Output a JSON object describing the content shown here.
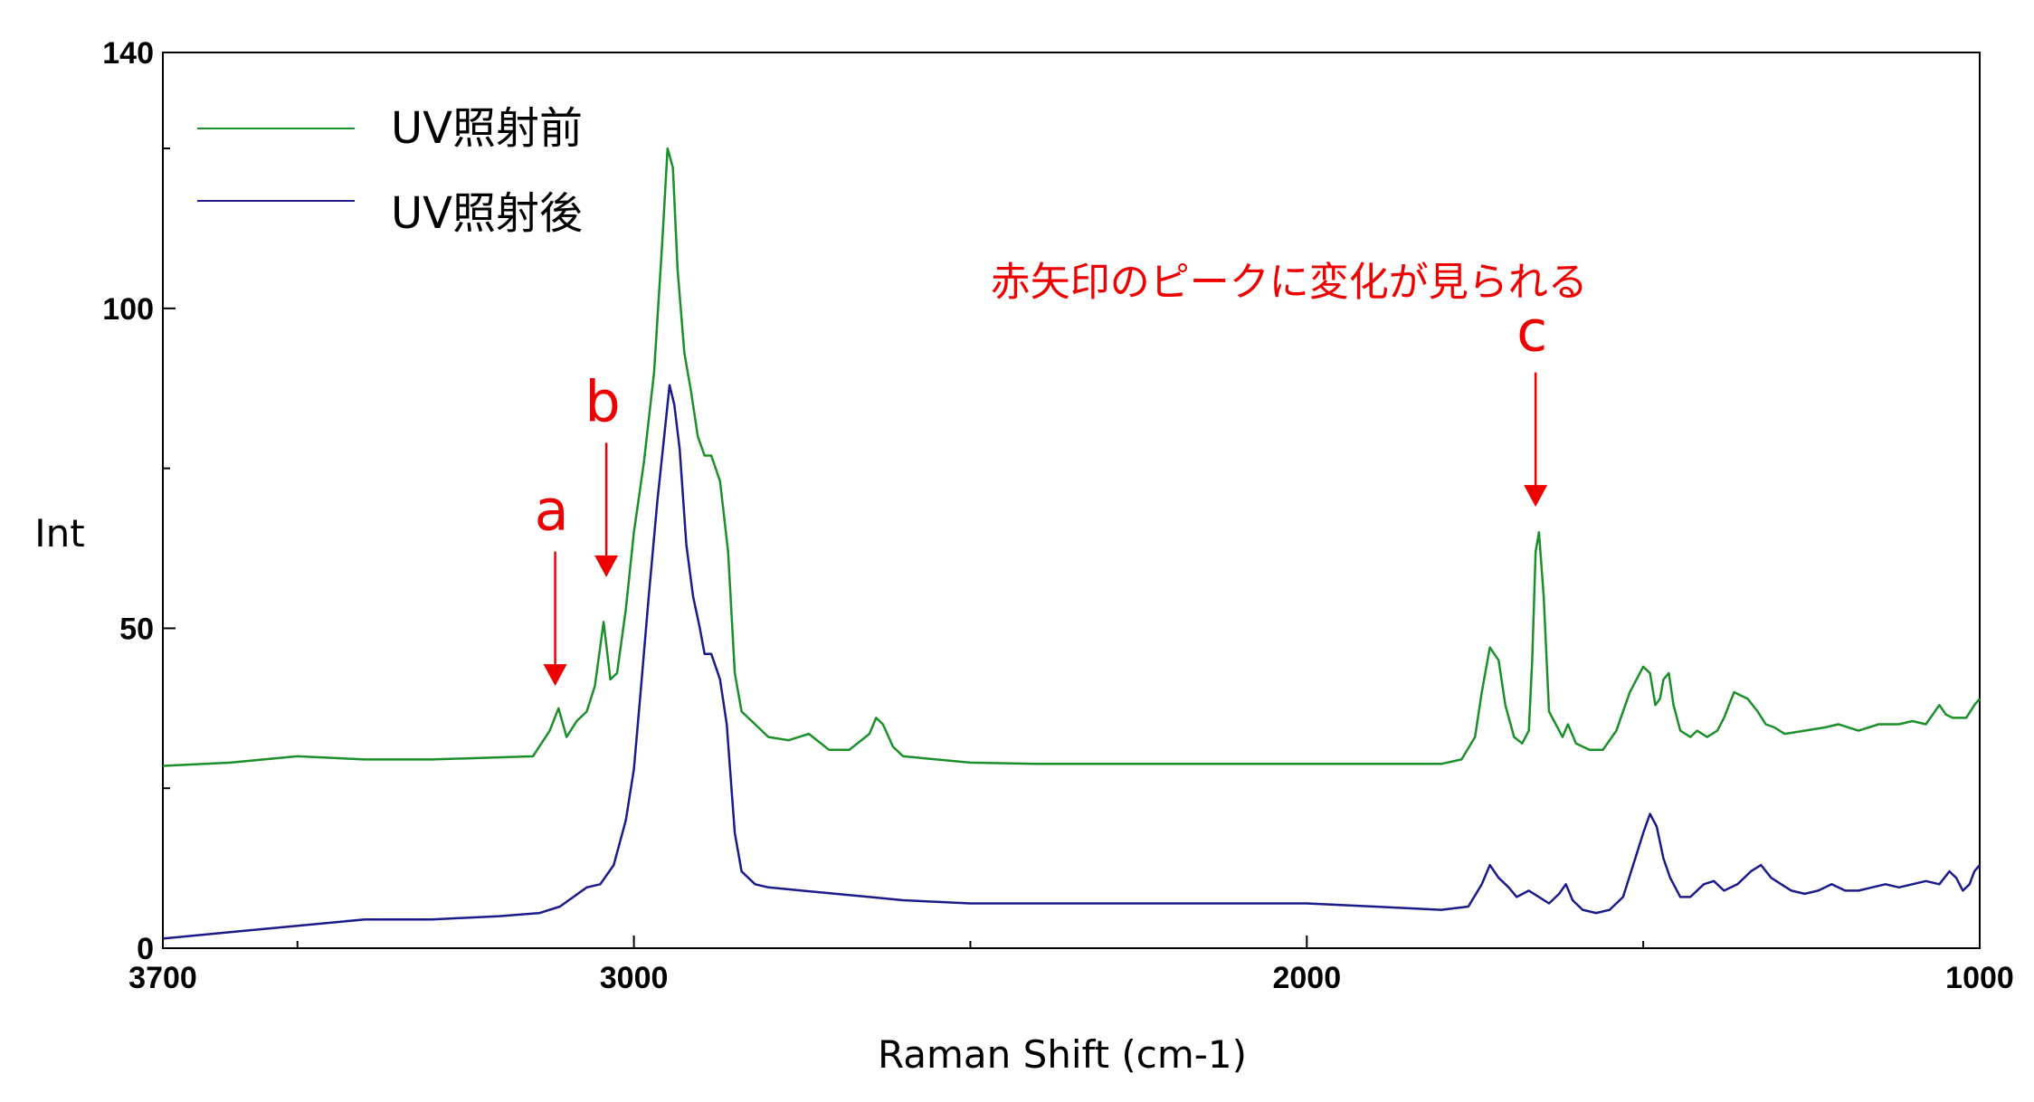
{
  "chart_data": {
    "type": "line",
    "title": "",
    "xlabel": "Raman Shift (cm-1)",
    "ylabel": "Int",
    "xlim": [
      3700,
      1000
    ],
    "ylim": [
      0,
      140
    ],
    "x_reversed": true,
    "x_ticks": [
      3700,
      3000,
      2000,
      1000
    ],
    "x_minor_ticks": [
      3500,
      2500,
      1500
    ],
    "y_ticks": [
      0,
      50,
      100,
      140
    ],
    "y_minor_ticks": [
      25,
      75,
      125
    ],
    "grid": false,
    "legend_position": "top-left",
    "series": [
      {
        "name": "UV照射前",
        "color": "#1a8f2a",
        "points": [
          [
            3700,
            28.5
          ],
          [
            3600,
            29
          ],
          [
            3500,
            30
          ],
          [
            3400,
            29.5
          ],
          [
            3300,
            29.5
          ],
          [
            3150,
            30
          ],
          [
            3125,
            34
          ],
          [
            3112,
            37.5
          ],
          [
            3100,
            33
          ],
          [
            3085,
            35.5
          ],
          [
            3070,
            37
          ],
          [
            3058,
            41
          ],
          [
            3045,
            51
          ],
          [
            3035,
            42
          ],
          [
            3025,
            43
          ],
          [
            3012,
            53
          ],
          [
            3000,
            65
          ],
          [
            2985,
            76
          ],
          [
            2970,
            90
          ],
          [
            2958,
            110
          ],
          [
            2950,
            125
          ],
          [
            2942,
            122
          ],
          [
            2935,
            106
          ],
          [
            2925,
            93
          ],
          [
            2915,
            87
          ],
          [
            2905,
            80
          ],
          [
            2895,
            77
          ],
          [
            2885,
            77
          ],
          [
            2872,
            73
          ],
          [
            2860,
            62
          ],
          [
            2850,
            43
          ],
          [
            2840,
            37
          ],
          [
            2820,
            35
          ],
          [
            2800,
            33
          ],
          [
            2770,
            32.5
          ],
          [
            2740,
            33.5
          ],
          [
            2710,
            31
          ],
          [
            2680,
            31
          ],
          [
            2650,
            33.5
          ],
          [
            2640,
            36
          ],
          [
            2630,
            35
          ],
          [
            2615,
            31.5
          ],
          [
            2600,
            30
          ],
          [
            2500,
            29
          ],
          [
            2400,
            28.8
          ],
          [
            2300,
            28.8
          ],
          [
            2200,
            28.8
          ],
          [
            2100,
            28.8
          ],
          [
            2000,
            28.8
          ],
          [
            1900,
            28.8
          ],
          [
            1800,
            28.8
          ],
          [
            1770,
            29.5
          ],
          [
            1750,
            33
          ],
          [
            1740,
            40
          ],
          [
            1728,
            47
          ],
          [
            1715,
            45
          ],
          [
            1705,
            38
          ],
          [
            1692,
            33
          ],
          [
            1680,
            32
          ],
          [
            1670,
            34
          ],
          [
            1665,
            45
          ],
          [
            1660,
            62
          ],
          [
            1655,
            65
          ],
          [
            1648,
            55
          ],
          [
            1640,
            37
          ],
          [
            1630,
            35
          ],
          [
            1620,
            33
          ],
          [
            1612,
            35
          ],
          [
            1600,
            32
          ],
          [
            1580,
            31
          ],
          [
            1560,
            31
          ],
          [
            1540,
            34
          ],
          [
            1520,
            40
          ],
          [
            1500,
            44
          ],
          [
            1490,
            43
          ],
          [
            1482,
            38
          ],
          [
            1475,
            39
          ],
          [
            1470,
            42
          ],
          [
            1462,
            43
          ],
          [
            1455,
            38
          ],
          [
            1445,
            34
          ],
          [
            1430,
            33
          ],
          [
            1420,
            34
          ],
          [
            1405,
            33
          ],
          [
            1390,
            34
          ],
          [
            1380,
            36
          ],
          [
            1365,
            40
          ],
          [
            1345,
            39
          ],
          [
            1330,
            37
          ],
          [
            1318,
            35
          ],
          [
            1305,
            34.5
          ],
          [
            1290,
            33.5
          ],
          [
            1260,
            34
          ],
          [
            1230,
            34.5
          ],
          [
            1210,
            35
          ],
          [
            1180,
            34
          ],
          [
            1150,
            35
          ],
          [
            1120,
            35
          ],
          [
            1100,
            35.5
          ],
          [
            1080,
            35
          ],
          [
            1060,
            38
          ],
          [
            1050,
            36.5
          ],
          [
            1040,
            36
          ],
          [
            1020,
            36
          ],
          [
            1008,
            38
          ],
          [
            1000,
            39
          ]
        ]
      },
      {
        "name": "UV照射後",
        "color": "#1a1a8a",
        "points": [
          [
            3700,
            1.5
          ],
          [
            3600,
            2.5
          ],
          [
            3500,
            3.5
          ],
          [
            3400,
            4.5
          ],
          [
            3300,
            4.5
          ],
          [
            3200,
            5
          ],
          [
            3140,
            5.5
          ],
          [
            3110,
            6.5
          ],
          [
            3090,
            8
          ],
          [
            3070,
            9.5
          ],
          [
            3050,
            10
          ],
          [
            3030,
            13
          ],
          [
            3012,
            20
          ],
          [
            3000,
            28
          ],
          [
            2990,
            40
          ],
          [
            2978,
            55
          ],
          [
            2965,
            70
          ],
          [
            2955,
            80
          ],
          [
            2947,
            88
          ],
          [
            2940,
            85
          ],
          [
            2932,
            78
          ],
          [
            2922,
            63
          ],
          [
            2912,
            55
          ],
          [
            2902,
            50
          ],
          [
            2895,
            46
          ],
          [
            2885,
            46
          ],
          [
            2872,
            42
          ],
          [
            2862,
            35
          ],
          [
            2850,
            18
          ],
          [
            2840,
            12
          ],
          [
            2820,
            10
          ],
          [
            2800,
            9.5
          ],
          [
            2750,
            9
          ],
          [
            2700,
            8.5
          ],
          [
            2650,
            8
          ],
          [
            2600,
            7.5
          ],
          [
            2500,
            7
          ],
          [
            2400,
            7
          ],
          [
            2300,
            7
          ],
          [
            2200,
            7
          ],
          [
            2100,
            7
          ],
          [
            2000,
            7
          ],
          [
            1900,
            6.5
          ],
          [
            1800,
            6
          ],
          [
            1760,
            6.5
          ],
          [
            1740,
            10
          ],
          [
            1728,
            13
          ],
          [
            1715,
            11
          ],
          [
            1700,
            9.5
          ],
          [
            1688,
            8
          ],
          [
            1670,
            9
          ],
          [
            1655,
            8
          ],
          [
            1640,
            7
          ],
          [
            1625,
            8.5
          ],
          [
            1615,
            10
          ],
          [
            1605,
            7.5
          ],
          [
            1590,
            6
          ],
          [
            1570,
            5.5
          ],
          [
            1550,
            6
          ],
          [
            1530,
            8
          ],
          [
            1515,
            13
          ],
          [
            1500,
            18
          ],
          [
            1490,
            21
          ],
          [
            1480,
            19
          ],
          [
            1470,
            14
          ],
          [
            1460,
            11
          ],
          [
            1445,
            8
          ],
          [
            1430,
            8
          ],
          [
            1410,
            10
          ],
          [
            1395,
            10.5
          ],
          [
            1380,
            9
          ],
          [
            1360,
            10
          ],
          [
            1340,
            12
          ],
          [
            1325,
            13
          ],
          [
            1310,
            11
          ],
          [
            1295,
            10
          ],
          [
            1280,
            9
          ],
          [
            1260,
            8.5
          ],
          [
            1240,
            9
          ],
          [
            1220,
            10
          ],
          [
            1200,
            9
          ],
          [
            1180,
            9
          ],
          [
            1160,
            9.5
          ],
          [
            1140,
            10
          ],
          [
            1120,
            9.5
          ],
          [
            1100,
            10
          ],
          [
            1080,
            10.5
          ],
          [
            1060,
            10
          ],
          [
            1045,
            12
          ],
          [
            1035,
            11
          ],
          [
            1025,
            9
          ],
          [
            1015,
            10
          ],
          [
            1008,
            12
          ],
          [
            1000,
            13
          ]
        ]
      }
    ],
    "annotations": [
      {
        "text": "a",
        "x": 3117,
        "arrow_from_y": 62,
        "arrow_to_y": 41,
        "color": "#ee0000"
      },
      {
        "text": "b",
        "x": 3041,
        "arrow_from_y": 79,
        "arrow_to_y": 58,
        "color": "#ee0000"
      },
      {
        "text": "c",
        "x": 1660,
        "arrow_from_y": 90,
        "arrow_to_y": 69,
        "color": "#ee0000"
      },
      {
        "text": "赤矢印のピークに変化が見られる",
        "x": 2470,
        "y": 102,
        "color": "#ee0000"
      }
    ]
  }
}
